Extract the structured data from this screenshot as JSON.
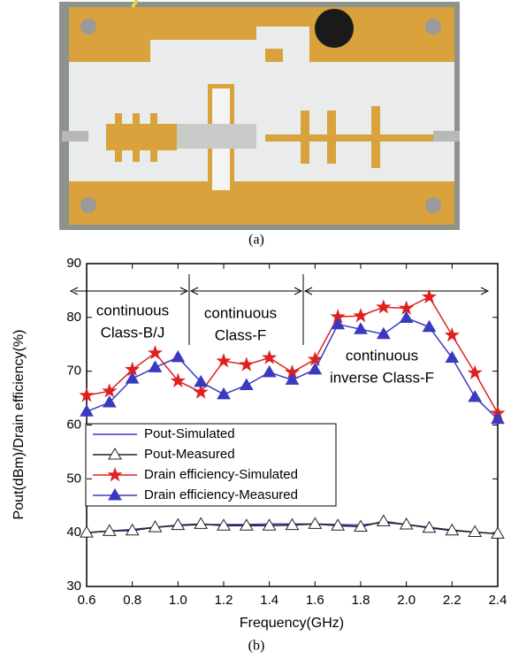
{
  "caption_a": "(a)",
  "caption_b": "(b)",
  "chart_data": {
    "type": "line",
    "x_label": "Frequency(GHz)",
    "y_label": "Pout(dBm)/Drain efficiency(%)",
    "annotations": [
      [
        "continuous",
        "Class-B/J"
      ],
      [
        "continuous",
        "Class-F"
      ],
      [
        "continuous",
        "inverse Class-F"
      ]
    ],
    "x": [
      0.6,
      0.7,
      0.8,
      0.9,
      1.0,
      1.1,
      1.2,
      1.3,
      1.4,
      1.5,
      1.6,
      1.7,
      1.8,
      1.9,
      2.0,
      2.1,
      2.2,
      2.3,
      2.4
    ],
    "xlim": [
      0.6,
      2.4
    ],
    "xticks": [
      0.6,
      0.8,
      {
        "value": 1,
        "label": "1.0"
      },
      1.2,
      1.4,
      1.6,
      1.8,
      {
        "value": 2,
        "label": "2.0"
      },
      2.2,
      2.4
    ],
    "ylim": [
      30,
      90
    ],
    "yticks": [
      30,
      40,
      50,
      60,
      70,
      80,
      90
    ],
    "legend": "upper left",
    "series": [
      {
        "name": "Pout-Simulated",
        "color": "#3535c8",
        "marker": "none",
        "values": [
          40.0,
          40.3,
          40.6,
          41.0,
          41.3,
          41.5,
          41.5,
          41.5,
          41.6,
          41.6,
          41.6,
          41.5,
          41.4,
          41.9,
          41.5,
          41.0,
          40.5,
          40.1,
          39.8
        ]
      },
      {
        "name": "Pout-Measured",
        "color": "#222222",
        "marker": "triangle-open",
        "values": [
          40.0,
          40.3,
          40.4,
          41.0,
          41.4,
          41.6,
          41.3,
          41.3,
          41.3,
          41.4,
          41.6,
          41.3,
          41.1,
          42.1,
          41.5,
          40.9,
          40.4,
          40.1,
          39.8
        ]
      },
      {
        "name": "Drain efficiency-Simulated",
        "color": "#e02020",
        "marker": "star",
        "values": [
          65.5,
          66.3,
          70.3,
          73.4,
          68.2,
          66.1,
          71.9,
          71.2,
          72.5,
          69.8,
          72.2,
          80.1,
          80.3,
          81.9,
          81.7,
          83.8,
          76.7,
          69.7,
          62.2
        ]
      },
      {
        "name": "Drain efficiency-Measured",
        "color": "#3a3ac0",
        "marker": "triangle",
        "values": [
          62.5,
          64.2,
          68.6,
          70.7,
          72.6,
          68.0,
          65.7,
          67.4,
          69.8,
          68.4,
          70.3,
          78.7,
          77.8,
          76.9,
          79.9,
          78.2,
          72.5,
          65.2,
          61.1
        ]
      }
    ]
  }
}
